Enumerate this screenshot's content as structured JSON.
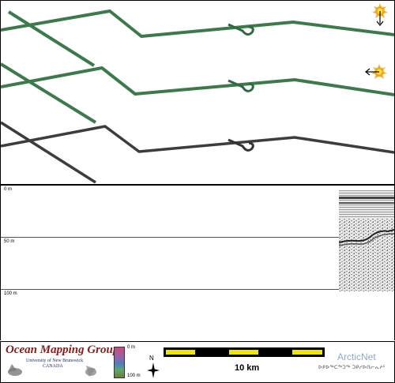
{
  "profile": {
    "depth_labels": [
      "0 m",
      "50 m",
      "100 m"
    ]
  },
  "footer": {
    "org_title": "Ocean Mapping Group",
    "org_university": "University of New Brunswick",
    "org_country": "CANADA",
    "colorbar_top": "0 m",
    "colorbar_bottom": "100 m",
    "north_label": "N",
    "scale_label": "10 km",
    "partner_name": "ArcticNet",
    "partner_syllabics": "ᐅᑭᐅᖅᑕᖅᑐᖅ ᑐᑭᓯᐅᑎᓕᕆᔨᑦ"
  },
  "colors": {
    "track_green": "#3c7a4c",
    "track_gray": "#3d3d3d",
    "omg_red": "#8b1a1a",
    "scale_yellow": "#f2e600"
  },
  "icons": [
    "sun-down-arrow-icon",
    "sun-left-arrow-icon",
    "north-arrow-icon"
  ]
}
